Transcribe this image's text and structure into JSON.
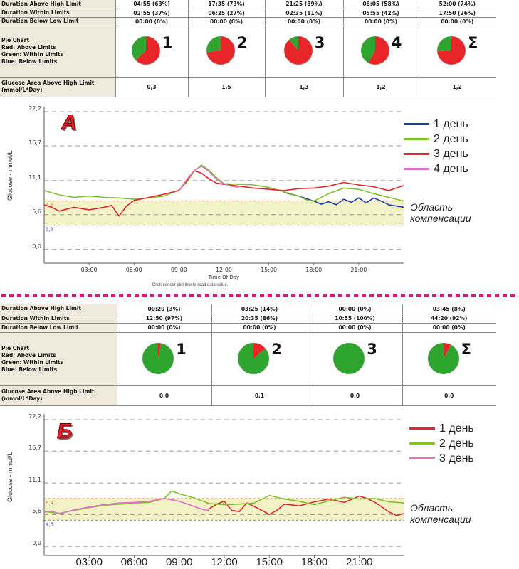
{
  "colors": {
    "above": "#e8262a",
    "within": "#2ea52e",
    "below": "#1f45b5",
    "series": [
      "#1a3da8",
      "#7cc42a",
      "#e3262f",
      "#e070c8"
    ],
    "series_b": [
      "#e3262f",
      "#7cc42a",
      "#e070c8"
    ],
    "band": "#f3f2c6",
    "dotted": "#e0157d"
  },
  "top": {
    "rows": [
      {
        "label": "Duration Above High Limit",
        "values": [
          "04:55 (63%)",
          "17:35 (73%)",
          "21:25 (89%)",
          "08:05 (58%)",
          "52:00 (74%)"
        ]
      },
      {
        "label": "Duration Within Limits",
        "values": [
          "02:55 (37%)",
          "06:25 (27%)",
          "02:35 (11%)",
          "05:55 (42%)",
          "17:50 (26%)"
        ]
      },
      {
        "label": "Duration Below Low Limit",
        "values": [
          "00:00 (0%)",
          "00:00 (0%)",
          "00:00 (0%)",
          "00:00 (0%)",
          "00:00 (0%)"
        ]
      }
    ],
    "pie_label": [
      "Pie Chart",
      "Red: Above Limits",
      "Green: Within Limits",
      "Blue: Below Limits"
    ],
    "pie_numbers": [
      "1",
      "2",
      "3",
      "4",
      "Σ"
    ],
    "pies": [
      {
        "above": 63,
        "within": 37,
        "below": 0
      },
      {
        "above": 73,
        "within": 27,
        "below": 0
      },
      {
        "above": 89,
        "within": 11,
        "below": 0
      },
      {
        "above": 58,
        "within": 42,
        "below": 0
      },
      {
        "above": 74,
        "within": 26,
        "below": 0
      }
    ],
    "area_label": [
      "Glucose Area Above High Limit",
      "(mmol/L*Day)"
    ],
    "area_values": [
      "0,3",
      "1,5",
      "1,3",
      "1,2",
      "1,2"
    ]
  },
  "bottom": {
    "rows": [
      {
        "label": "Duration Above High Limit",
        "values": [
          "00:20 (3%)",
          "03:25 (14%)",
          "00:00 (0%)",
          "03:45 (8%)"
        ]
      },
      {
        "label": "Duration Within Limits",
        "values": [
          "12:50 (97%)",
          "20:35 (86%)",
          "10:55 (100%)",
          "44:20 (92%)"
        ]
      },
      {
        "label": "Duration Below Low Limit",
        "values": [
          "00:00 (0%)",
          "00:00 (0%)",
          "00:00 (0%)",
          "00:00 (0%)"
        ]
      }
    ],
    "pie_label": [
      "Pie Chart",
      "Red: Above Limits",
      "Green: Within Limits",
      "Blue: Below Limits"
    ],
    "pie_numbers": [
      "1",
      "2",
      "3",
      "Σ"
    ],
    "pies": [
      {
        "above": 3,
        "within": 97,
        "below": 0
      },
      {
        "above": 14,
        "within": 86,
        "below": 0
      },
      {
        "above": 0,
        "within": 100,
        "below": 0
      },
      {
        "above": 8,
        "within": 92,
        "below": 0
      }
    ],
    "area_label": [
      "Glucose Area Above High Limit",
      "(mmol/L*Day)"
    ],
    "area_values": [
      "0,0",
      "0,1",
      "0,0",
      "0,0"
    ]
  },
  "chart_data": [
    {
      "type": "line",
      "panel": "А",
      "ylabel": "Glucose - mmol/L",
      "xlabel": "Time Of Day",
      "hint": "Click sensor plot line to read data value.",
      "yticks": [
        "22,2",
        "16,7",
        "11,1",
        "5,6",
        "0,0"
      ],
      "ytick_values": [
        22.2,
        16.7,
        11.1,
        5.6,
        0.0
      ],
      "ylim": [
        -2.2,
        23.0
      ],
      "xticks": [
        "03:00",
        "06:00",
        "09:00",
        "12:00",
        "15:00",
        "18:00",
        "21:00"
      ],
      "xtick_hours": [
        3,
        6,
        9,
        12,
        15,
        18,
        21
      ],
      "xlim": [
        0,
        24
      ],
      "high_limit": 7.8,
      "low_limit": 3.9,
      "high_limit_label": "7,8",
      "low_limit_label": "3,9",
      "region_label": [
        "Область",
        "компенсации"
      ],
      "series": [
        {
          "name": "1 день",
          "x": [
            16,
            17,
            17.5,
            18,
            18.5,
            19,
            19.5,
            20,
            20.5,
            21,
            21.5,
            22,
            22.5,
            23,
            24
          ],
          "y": [
            9.2,
            8.6,
            8.2,
            7.8,
            7.3,
            7.7,
            7.2,
            8.1,
            7.6,
            8.3,
            7.5,
            8.3,
            7.8,
            7.2,
            6.8
          ]
        },
        {
          "name": "2 день",
          "x": [
            0,
            1,
            2,
            3,
            4,
            5,
            6,
            7,
            8,
            9,
            9.5,
            10,
            10.5,
            11,
            11.5,
            12,
            13,
            14,
            15,
            16,
            17,
            17.5,
            18,
            19,
            20,
            21,
            22,
            23,
            24
          ],
          "y": [
            9.5,
            8.8,
            8.4,
            8.6,
            8.4,
            8.3,
            8.1,
            8.3,
            8.6,
            9.6,
            10.8,
            12.6,
            13.6,
            12.8,
            11.6,
            10.6,
            10.5,
            10.4,
            10.0,
            9.3,
            8.6,
            8.0,
            7.8,
            9.0,
            9.9,
            9.7,
            9.0,
            8.4,
            7.8
          ]
        },
        {
          "name": "3 день",
          "x": [
            0,
            0.5,
            1,
            2,
            3,
            4,
            4.5,
            5,
            5.5,
            6,
            7,
            8,
            9,
            9.5,
            10,
            10.5,
            11,
            11.5,
            12,
            13,
            14,
            15,
            16,
            17,
            18,
            19,
            20,
            21,
            22,
            23,
            24
          ],
          "y": [
            7.2,
            6.8,
            6.2,
            6.8,
            6.4,
            6.8,
            7.1,
            5.4,
            7.0,
            7.9,
            8.4,
            8.9,
            9.5,
            11.0,
            12.7,
            12.3,
            11.4,
            10.7,
            10.5,
            10.2,
            9.9,
            9.7,
            9.5,
            9.8,
            9.9,
            10.2,
            10.8,
            10.4,
            10.1,
            9.5,
            10.3
          ]
        },
        {
          "name": "4 день",
          "x": [
            9,
            9.5,
            10,
            10.5,
            11,
            11.5,
            12,
            12.5,
            13
          ],
          "y": [
            9.5,
            11.2,
            12.7,
            13.4,
            12.6,
            11.3,
            10.6,
            10.2,
            10.0
          ]
        }
      ]
    },
    {
      "type": "line",
      "panel": "Б",
      "ylabel": "Glucose - mmol/L",
      "xlabel": "",
      "yticks": [
        "22,2",
        "16,7",
        "11,1",
        "5,6",
        "0,0"
      ],
      "ytick_values": [
        22.2,
        16.7,
        11.1,
        5.6,
        0.0
      ],
      "ylim": [
        -1.6,
        23.2
      ],
      "xticks": [
        "03:00",
        "06:00",
        "09:00",
        "12:00",
        "15:00",
        "18:00",
        "21:00"
      ],
      "xtick_hours": [
        3,
        6,
        9,
        12,
        15,
        18,
        21
      ],
      "xlim": [
        0,
        24
      ],
      "high_limit": 8.4,
      "low_limit": 4.6,
      "high_limit_label": "8,4",
      "low_limit_label": "4,6",
      "region_label": [
        "Область",
        "компенсации"
      ],
      "series": [
        {
          "name": "1 день",
          "x": [
            11,
            11.5,
            12,
            12.5,
            13,
            13.5,
            14,
            14.5,
            15,
            15.5,
            16,
            17,
            18,
            19,
            20,
            21,
            21.5,
            22,
            23,
            23.5,
            24
          ],
          "y": [
            6.6,
            7.4,
            7.9,
            6.3,
            6.1,
            7.6,
            7.0,
            6.3,
            5.6,
            6.3,
            7.4,
            7.1,
            7.8,
            8.3,
            7.7,
            8.8,
            8.4,
            7.8,
            6.0,
            5.4,
            5.8
          ]
        },
        {
          "name": "2 день",
          "x": [
            0,
            1,
            2,
            3,
            4,
            5,
            6,
            7,
            8,
            8.5,
            9,
            10,
            11,
            12,
            13,
            14,
            15,
            16,
            17,
            18,
            19,
            20,
            21,
            22,
            23,
            24
          ],
          "y": [
            6.1,
            5.8,
            6.3,
            6.8,
            7.2,
            7.4,
            7.6,
            7.7,
            8.4,
            9.7,
            9.2,
            8.5,
            7.5,
            7.3,
            7.4,
            7.6,
            8.9,
            8.3,
            7.9,
            7.3,
            8.0,
            8.6,
            8.3,
            8.4,
            7.8,
            7.6
          ]
        },
        {
          "name": "3 день",
          "x": [
            0,
            0.5,
            1,
            2,
            3,
            4,
            5,
            6,
            7,
            8,
            9,
            10,
            10.5,
            11
          ],
          "y": [
            6.0,
            6.2,
            5.7,
            6.4,
            6.9,
            7.3,
            7.6,
            7.7,
            7.9,
            8.4,
            7.9,
            7.0,
            6.5,
            6.3
          ]
        }
      ]
    }
  ]
}
